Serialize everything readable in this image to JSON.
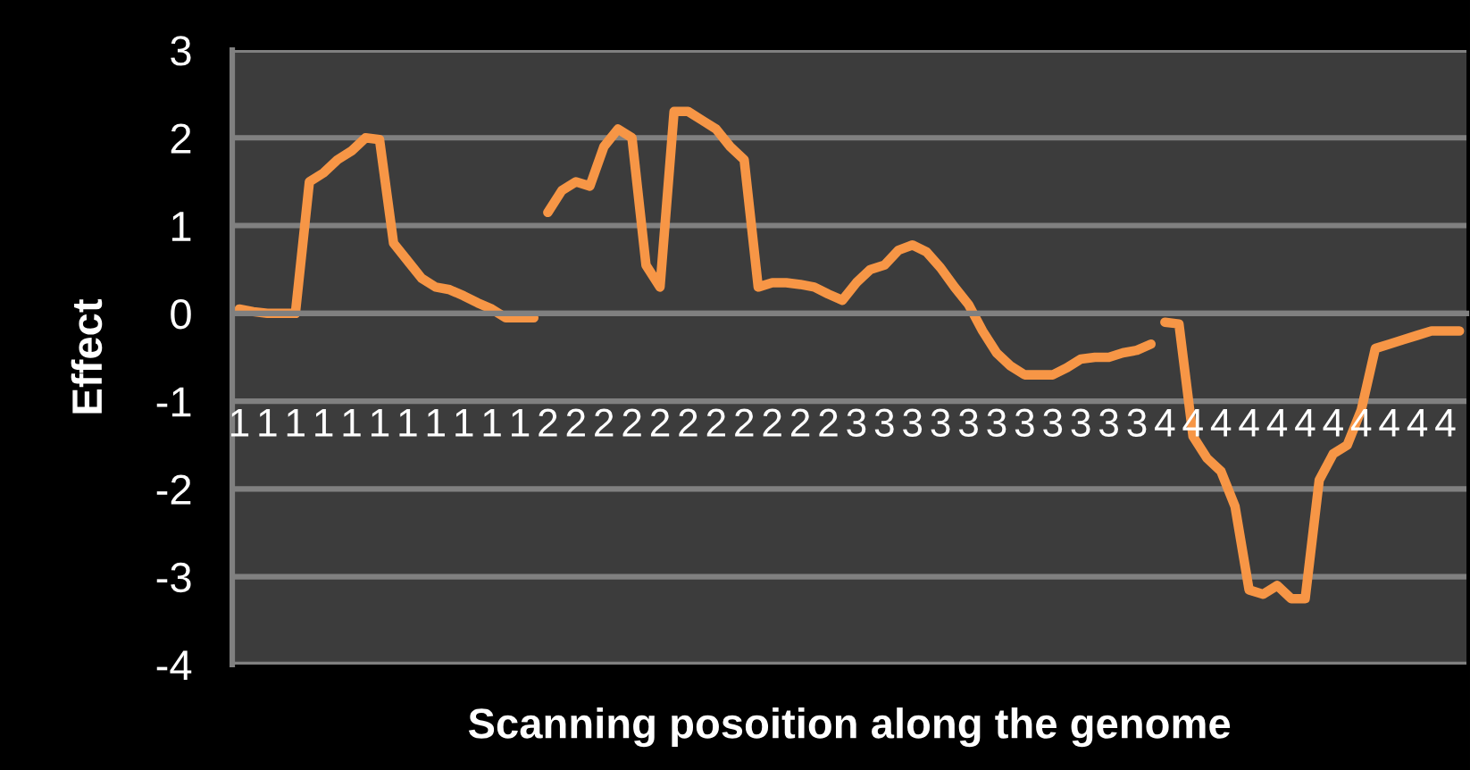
{
  "chart_data": {
    "type": "line",
    "xlabel": "Scanning posoition along the genome",
    "ylabel": "Effect",
    "categories": [
      "1",
      null,
      "1",
      null,
      "1",
      null,
      "1",
      null,
      "1",
      null,
      "1",
      null,
      "1",
      null,
      "1",
      null,
      "1",
      null,
      "1",
      null,
      "1",
      null,
      "2",
      null,
      "2",
      null,
      "2",
      null,
      "2",
      null,
      "2",
      null,
      "2",
      null,
      "2",
      null,
      "2",
      null,
      "2",
      null,
      "2",
      null,
      "2",
      null,
      "3",
      null,
      "3",
      null,
      "3",
      null,
      "3",
      null,
      "3",
      null,
      "3",
      null,
      "3",
      null,
      "3",
      null,
      "3",
      null,
      "3",
      null,
      "3",
      null,
      "4",
      null,
      "4",
      null,
      "4",
      null,
      "4",
      null,
      "4",
      null,
      "4",
      null,
      "4",
      null,
      "4",
      null,
      "4",
      null,
      "4",
      null,
      "4",
      null
    ],
    "series": [
      {
        "color": "#f79646",
        "values": [
          0.05,
          0.02,
          0.0,
          0.0,
          0.0,
          1.5,
          1.6,
          1.75,
          1.85,
          2.0,
          1.98,
          0.8,
          0.6,
          0.4,
          0.3,
          0.27,
          0.2,
          0.12,
          0.05,
          -0.05,
          -0.05,
          -0.05,
          null,
          null,
          null,
          null,
          null,
          null,
          null,
          null,
          null,
          null,
          null,
          null,
          null,
          null,
          null,
          null,
          null,
          null,
          null,
          null,
          null,
          null,
          null,
          null,
          null,
          null,
          null,
          null,
          null,
          null,
          null,
          null,
          null,
          null,
          null,
          null,
          null,
          null,
          null,
          null,
          null,
          null,
          null,
          null,
          null,
          null,
          null,
          null,
          null,
          null,
          null,
          null,
          null,
          null,
          null,
          null,
          null,
          null,
          null,
          null,
          null,
          null,
          null,
          null,
          null,
          null
        ]
      },
      {
        "color": "#f79646",
        "values": [
          null,
          null,
          null,
          null,
          null,
          null,
          null,
          null,
          null,
          null,
          null,
          null,
          null,
          null,
          null,
          null,
          null,
          null,
          null,
          null,
          null,
          null,
          1.15,
          1.4,
          1.5,
          1.45,
          1.9,
          2.1,
          2.0,
          0.55,
          0.3,
          2.3,
          2.3,
          2.2,
          2.1,
          1.9,
          1.75,
          0.3,
          0.35,
          0.35,
          0.33,
          0.3,
          0.22,
          0.15,
          0.35,
          0.5,
          0.55,
          0.72,
          0.78,
          0.7,
          0.52,
          0.3,
          0.1,
          -0.2,
          -0.45,
          -0.6,
          -0.7,
          -0.7,
          -0.7,
          -0.62,
          -0.52,
          -0.5,
          -0.5,
          -0.45,
          -0.42,
          -0.35,
          null,
          null,
          null,
          null,
          null,
          null,
          null,
          null,
          null,
          null,
          null,
          null,
          null,
          null,
          null,
          null,
          null,
          null,
          null,
          null,
          null,
          null
        ]
      },
      {
        "color": "#f79646",
        "values": [
          null,
          null,
          null,
          null,
          null,
          null,
          null,
          null,
          null,
          null,
          null,
          null,
          null,
          null,
          null,
          null,
          null,
          null,
          null,
          null,
          null,
          null,
          null,
          null,
          null,
          null,
          null,
          null,
          null,
          null,
          null,
          null,
          null,
          null,
          null,
          null,
          null,
          null,
          null,
          null,
          null,
          null,
          null,
          null,
          null,
          null,
          null,
          null,
          null,
          null,
          null,
          null,
          null,
          null,
          null,
          null,
          null,
          null,
          null,
          null,
          null,
          null,
          null,
          null,
          null,
          null,
          -0.1,
          -0.12,
          -1.4,
          -1.65,
          -1.8,
          -2.2,
          -3.15,
          -3.2,
          -3.1,
          -3.25,
          -3.25,
          -1.9,
          -1.6,
          -1.5,
          -1.1,
          -0.4,
          -0.35,
          -0.3,
          -0.25,
          -0.2,
          -0.2,
          -0.2
        ]
      }
    ],
    "ylim": [
      -4,
      3
    ],
    "yticks": [
      -4,
      -3,
      -2,
      -1,
      0,
      1,
      2,
      3
    ],
    "grid": "y",
    "line_style": "solid"
  }
}
